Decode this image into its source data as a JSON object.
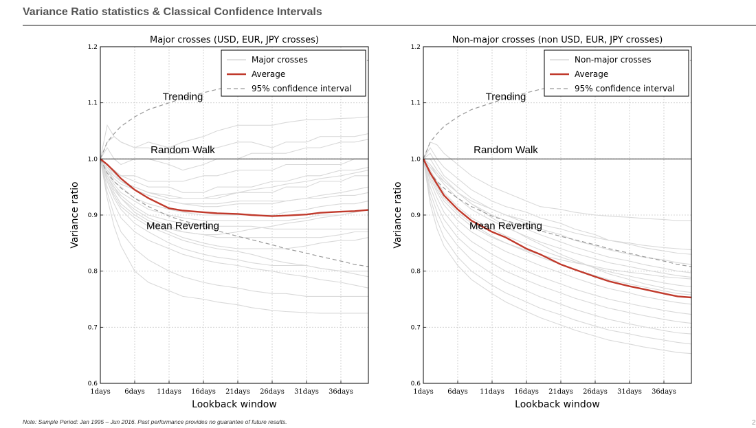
{
  "header": {
    "title": "Variance Ratio statistics & Classical Confidence Intervals"
  },
  "footnote": "Note: Sample Period: Jan 1995 – Jun 2016. Past performance provides no guarantee of future results.",
  "page_number": "2",
  "colors": {
    "individual": "#d9d9d9",
    "average": "#c0392b",
    "confidence": "#999999",
    "grid": "#c8c8c8"
  },
  "chart_data": [
    {
      "type": "line",
      "title": "Major crosses (USD, EUR, JPY crosses)",
      "xlabel": "Lookback window",
      "ylabel": "Variance ratio",
      "ylim": [
        0.6,
        1.2
      ],
      "yticks": [
        "0.6",
        "0.7",
        "0.8",
        "0.9",
        "1.0",
        "1.1",
        "1.2"
      ],
      "xticks": [
        "1days",
        "6days",
        "11days",
        "16days",
        "21days",
        "26days",
        "31days",
        "36days"
      ],
      "xlim": [
        1,
        40
      ],
      "grid": true,
      "legend_position": "top-right",
      "legend": [
        "Major crosses",
        "Average",
        "95% confidence interval"
      ],
      "annotations": [
        {
          "text": "Trending",
          "x": 13,
          "y": 1.105
        },
        {
          "text": "Random Walk",
          "x": 13,
          "y": 1.01
        },
        {
          "text": "Mean Reverting",
          "x": 13,
          "y": 0.875
        }
      ],
      "reference_line": {
        "y": 1.0,
        "label": "Random Walk"
      },
      "x": [
        1,
        2,
        3,
        4,
        6,
        8,
        11,
        13,
        16,
        18,
        21,
        23,
        26,
        28,
        31,
        33,
        36,
        38,
        40
      ],
      "average": [
        1.0,
        0.99,
        0.978,
        0.965,
        0.945,
        0.93,
        0.912,
        0.908,
        0.905,
        0.903,
        0.902,
        0.9,
        0.898,
        0.899,
        0.901,
        0.904,
        0.906,
        0.907,
        0.909
      ],
      "confidence_upper": [
        1.0,
        1.03,
        1.045,
        1.058,
        1.075,
        1.088,
        1.1,
        1.108,
        1.118,
        1.124,
        1.132,
        1.138,
        1.145,
        1.15,
        1.156,
        1.162,
        1.168,
        1.172,
        1.176
      ],
      "confidence_lower": [
        1.0,
        0.975,
        0.96,
        0.948,
        0.93,
        0.915,
        0.898,
        0.89,
        0.88,
        0.872,
        0.862,
        0.856,
        0.847,
        0.84,
        0.832,
        0.826,
        0.818,
        0.812,
        0.808
      ],
      "series": [
        {
          "values": [
            1.0,
            1.06,
            1.04,
            1.03,
            1.02,
            1.03,
            1.02,
            1.03,
            1.04,
            1.05,
            1.06,
            1.06,
            1.06,
            1.065,
            1.07,
            1.07,
            1.072,
            1.073,
            1.075
          ]
        },
        {
          "values": [
            1.0,
            1.03,
            1.04,
            1.03,
            1.02,
            1.02,
            1.01,
            1.01,
            1.02,
            1.02,
            1.03,
            1.03,
            1.02,
            1.03,
            1.03,
            1.04,
            1.04,
            1.04,
            1.045
          ]
        },
        {
          "values": [
            1.0,
            1.02,
            1.0,
            0.99,
            1.0,
            1.0,
            0.99,
            0.98,
            0.99,
            1.0,
            1.0,
            1.01,
            1.01,
            1.01,
            1.02,
            1.02,
            1.03,
            1.03,
            1.035
          ]
        },
        {
          "values": [
            1.0,
            0.99,
            0.98,
            0.97,
            0.97,
            0.96,
            0.96,
            0.96,
            0.97,
            0.97,
            0.98,
            0.98,
            0.98,
            0.99,
            0.99,
            0.99,
            0.99,
            1.0,
            1.0
          ]
        },
        {
          "values": [
            1.0,
            0.99,
            0.98,
            0.97,
            0.96,
            0.95,
            0.95,
            0.94,
            0.94,
            0.95,
            0.95,
            0.95,
            0.96,
            0.96,
            0.97,
            0.97,
            0.98,
            0.98,
            0.985
          ]
        },
        {
          "values": [
            1.0,
            0.98,
            0.97,
            0.96,
            0.95,
            0.94,
            0.93,
            0.93,
            0.93,
            0.93,
            0.94,
            0.94,
            0.94,
            0.95,
            0.95,
            0.96,
            0.96,
            0.97,
            0.97
          ]
        },
        {
          "values": [
            1.0,
            0.98,
            0.965,
            0.955,
            0.945,
            0.935,
            0.925,
            0.92,
            0.915,
            0.915,
            0.92,
            0.92,
            0.92,
            0.925,
            0.93,
            0.935,
            0.94,
            0.945,
            0.95
          ]
        },
        {
          "values": [
            1.0,
            0.985,
            0.97,
            0.96,
            0.945,
            0.935,
            0.925,
            0.92,
            0.92,
            0.92,
            0.925,
            0.925,
            0.925,
            0.925,
            0.93,
            0.93,
            0.935,
            0.935,
            0.94
          ]
        },
        {
          "values": [
            1.0,
            0.98,
            0.96,
            0.95,
            0.93,
            0.92,
            0.91,
            0.905,
            0.9,
            0.9,
            0.9,
            0.9,
            0.9,
            0.905,
            0.91,
            0.915,
            0.92,
            0.92,
            0.925
          ]
        },
        {
          "values": [
            1.0,
            0.975,
            0.955,
            0.94,
            0.925,
            0.91,
            0.9,
            0.895,
            0.89,
            0.89,
            0.89,
            0.89,
            0.89,
            0.89,
            0.895,
            0.9,
            0.9,
            0.905,
            0.91
          ]
        },
        {
          "values": [
            1.0,
            0.97,
            0.95,
            0.935,
            0.915,
            0.9,
            0.89,
            0.885,
            0.88,
            0.88,
            0.88,
            0.88,
            0.875,
            0.875,
            0.875,
            0.875,
            0.875,
            0.875,
            0.875
          ]
        },
        {
          "values": [
            1.0,
            0.97,
            0.945,
            0.93,
            0.91,
            0.895,
            0.88,
            0.87,
            0.865,
            0.86,
            0.86,
            0.86,
            0.86,
            0.86,
            0.86,
            0.86,
            0.865,
            0.87,
            0.87
          ]
        },
        {
          "values": [
            1.0,
            0.965,
            0.94,
            0.92,
            0.9,
            0.885,
            0.87,
            0.86,
            0.85,
            0.845,
            0.84,
            0.84,
            0.84,
            0.84,
            0.845,
            0.85,
            0.855,
            0.855,
            0.86
          ]
        },
        {
          "values": [
            1.0,
            0.96,
            0.93,
            0.91,
            0.885,
            0.87,
            0.85,
            0.84,
            0.83,
            0.825,
            0.82,
            0.815,
            0.81,
            0.81,
            0.81,
            0.805,
            0.8,
            0.8,
            0.8
          ]
        },
        {
          "values": [
            1.0,
            0.95,
            0.92,
            0.895,
            0.87,
            0.855,
            0.84,
            0.83,
            0.82,
            0.815,
            0.81,
            0.805,
            0.8,
            0.795,
            0.79,
            0.785,
            0.78,
            0.775,
            0.77
          ]
        },
        {
          "values": [
            1.0,
            0.94,
            0.9,
            0.87,
            0.84,
            0.82,
            0.8,
            0.79,
            0.78,
            0.775,
            0.77,
            0.765,
            0.76,
            0.76,
            0.755,
            0.755,
            0.755,
            0.755,
            0.755
          ]
        },
        {
          "values": [
            1.0,
            0.93,
            0.88,
            0.845,
            0.8,
            0.78,
            0.765,
            0.755,
            0.75,
            0.745,
            0.74,
            0.735,
            0.73,
            0.728,
            0.726,
            0.725,
            0.725,
            0.725,
            0.725
          ]
        },
        {
          "values": [
            1.0,
            0.985,
            0.975,
            0.96,
            0.95,
            0.94,
            0.935,
            0.93,
            0.93,
            0.935,
            0.94,
            0.945,
            0.95,
            0.955,
            0.96,
            0.965,
            0.97,
            0.975,
            0.98
          ]
        },
        {
          "values": [
            1.0,
            0.97,
            0.95,
            0.93,
            0.905,
            0.89,
            0.875,
            0.87,
            0.865,
            0.865,
            0.87,
            0.875,
            0.88,
            0.885,
            0.89,
            0.895,
            0.9,
            0.905,
            0.91
          ]
        },
        {
          "values": [
            1.0,
            0.96,
            0.935,
            0.915,
            0.895,
            0.88,
            0.865,
            0.855,
            0.845,
            0.84,
            0.835,
            0.83,
            0.82,
            0.815,
            0.81,
            0.805,
            0.8,
            0.795,
            0.79
          ]
        }
      ]
    },
    {
      "type": "line",
      "title": "Non-major crosses (non USD, EUR, JPY crosses)",
      "xlabel": "Lookback window",
      "ylabel": "Variance ratio",
      "ylim": [
        0.6,
        1.2
      ],
      "yticks": [
        "0.6",
        "0.7",
        "0.8",
        "0.9",
        "1.0",
        "1.1",
        "1.2"
      ],
      "xticks": [
        "1days",
        "6days",
        "11days",
        "16days",
        "21days",
        "26days",
        "31days",
        "36days"
      ],
      "xlim": [
        1,
        40
      ],
      "grid": true,
      "legend_position": "top-right",
      "legend": [
        "Non-major crosses",
        "Average",
        "95% confidence interval"
      ],
      "annotations": [
        {
          "text": "Trending",
          "x": 13,
          "y": 1.105
        },
        {
          "text": "Random Walk",
          "x": 13,
          "y": 1.01
        },
        {
          "text": "Mean Reverting",
          "x": 13,
          "y": 0.875
        }
      ],
      "reference_line": {
        "y": 1.0,
        "label": "Random Walk"
      },
      "x": [
        1,
        2,
        3,
        4,
        6,
        8,
        11,
        13,
        16,
        18,
        21,
        23,
        26,
        28,
        31,
        33,
        36,
        38,
        40
      ],
      "average": [
        1.0,
        0.975,
        0.955,
        0.935,
        0.91,
        0.89,
        0.87,
        0.86,
        0.84,
        0.83,
        0.812,
        0.803,
        0.79,
        0.782,
        0.773,
        0.768,
        0.76,
        0.755,
        0.753
      ],
      "confidence_upper": [
        1.0,
        1.03,
        1.045,
        1.058,
        1.075,
        1.088,
        1.1,
        1.108,
        1.118,
        1.124,
        1.132,
        1.138,
        1.145,
        1.15,
        1.156,
        1.162,
        1.168,
        1.172,
        1.176
      ],
      "confidence_lower": [
        1.0,
        0.975,
        0.96,
        0.948,
        0.93,
        0.915,
        0.898,
        0.89,
        0.88,
        0.872,
        0.862,
        0.856,
        0.847,
        0.84,
        0.832,
        0.826,
        0.818,
        0.812,
        0.808
      ],
      "series": [
        {
          "values": [
            1.0,
            1.03,
            1.025,
            1.01,
            0.99,
            0.97,
            0.95,
            0.94,
            0.925,
            0.915,
            0.91,
            0.905,
            0.9,
            0.898,
            0.896,
            0.894,
            0.892,
            0.89,
            0.89
          ]
        },
        {
          "values": [
            1.0,
            1.02,
            1.0,
            0.985,
            0.965,
            0.945,
            0.925,
            0.915,
            0.905,
            0.895,
            0.885,
            0.875,
            0.865,
            0.855,
            0.848,
            0.842,
            0.836,
            0.832,
            0.83
          ]
        },
        {
          "values": [
            1.0,
            1.01,
            0.99,
            0.97,
            0.95,
            0.93,
            0.91,
            0.9,
            0.885,
            0.875,
            0.865,
            0.855,
            0.845,
            0.838,
            0.83,
            0.825,
            0.82,
            0.815,
            0.812
          ]
        },
        {
          "values": [
            1.0,
            1.0,
            0.98,
            0.965,
            0.94,
            0.92,
            0.9,
            0.89,
            0.875,
            0.865,
            0.852,
            0.843,
            0.832,
            0.825,
            0.818,
            0.812,
            0.805,
            0.8,
            0.797
          ]
        },
        {
          "values": [
            1.0,
            0.99,
            0.97,
            0.955,
            0.93,
            0.91,
            0.89,
            0.878,
            0.862,
            0.852,
            0.84,
            0.832,
            0.822,
            0.815,
            0.808,
            0.803,
            0.796,
            0.792,
            0.789
          ]
        },
        {
          "values": [
            1.0,
            0.98,
            0.96,
            0.94,
            0.915,
            0.895,
            0.875,
            0.863,
            0.848,
            0.838,
            0.825,
            0.817,
            0.806,
            0.799,
            0.791,
            0.786,
            0.779,
            0.775,
            0.772
          ]
        },
        {
          "values": [
            1.0,
            0.975,
            0.95,
            0.93,
            0.905,
            0.885,
            0.862,
            0.85,
            0.835,
            0.825,
            0.812,
            0.803,
            0.792,
            0.785,
            0.777,
            0.772,
            0.765,
            0.76,
            0.758
          ]
        },
        {
          "values": [
            1.0,
            0.965,
            0.94,
            0.918,
            0.89,
            0.87,
            0.848,
            0.835,
            0.82,
            0.81,
            0.797,
            0.788,
            0.776,
            0.769,
            0.761,
            0.755,
            0.748,
            0.744,
            0.741
          ]
        },
        {
          "values": [
            1.0,
            0.96,
            0.93,
            0.905,
            0.875,
            0.853,
            0.83,
            0.817,
            0.8,
            0.79,
            0.777,
            0.768,
            0.757,
            0.75,
            0.742,
            0.737,
            0.73,
            0.726,
            0.723
          ]
        },
        {
          "values": [
            1.0,
            0.95,
            0.918,
            0.892,
            0.86,
            0.838,
            0.814,
            0.8,
            0.784,
            0.774,
            0.761,
            0.752,
            0.741,
            0.734,
            0.726,
            0.721,
            0.714,
            0.71,
            0.707
          ]
        },
        {
          "values": [
            1.0,
            0.94,
            0.905,
            0.878,
            0.845,
            0.82,
            0.795,
            0.781,
            0.765,
            0.754,
            0.741,
            0.732,
            0.721,
            0.714,
            0.706,
            0.701,
            0.694,
            0.69,
            0.688
          ]
        },
        {
          "values": [
            1.0,
            0.93,
            0.89,
            0.86,
            0.825,
            0.8,
            0.775,
            0.761,
            0.745,
            0.734,
            0.722,
            0.713,
            0.702,
            0.695,
            0.688,
            0.683,
            0.677,
            0.673,
            0.67
          ]
        },
        {
          "values": [
            1.0,
            0.92,
            0.875,
            0.845,
            0.81,
            0.785,
            0.76,
            0.745,
            0.728,
            0.717,
            0.704,
            0.695,
            0.684,
            0.677,
            0.67,
            0.665,
            0.659,
            0.655,
            0.653
          ]
        },
        {
          "values": [
            1.0,
            0.985,
            0.97,
            0.96,
            0.94,
            0.925,
            0.91,
            0.9,
            0.89,
            0.883,
            0.875,
            0.868,
            0.86,
            0.855,
            0.85,
            0.846,
            0.842,
            0.84,
            0.838
          ]
        },
        {
          "values": [
            1.0,
            0.99,
            0.975,
            0.96,
            0.94,
            0.92,
            0.895,
            0.88,
            0.86,
            0.848,
            0.83,
            0.82,
            0.805,
            0.795,
            0.785,
            0.778,
            0.77,
            0.765,
            0.762
          ]
        },
        {
          "values": [
            1.0,
            0.97,
            0.945,
            0.925,
            0.9,
            0.88,
            0.86,
            0.85,
            0.837,
            0.829,
            0.82,
            0.815,
            0.808,
            0.803,
            0.798,
            0.795,
            0.79,
            0.788,
            0.786
          ]
        }
      ]
    }
  ]
}
